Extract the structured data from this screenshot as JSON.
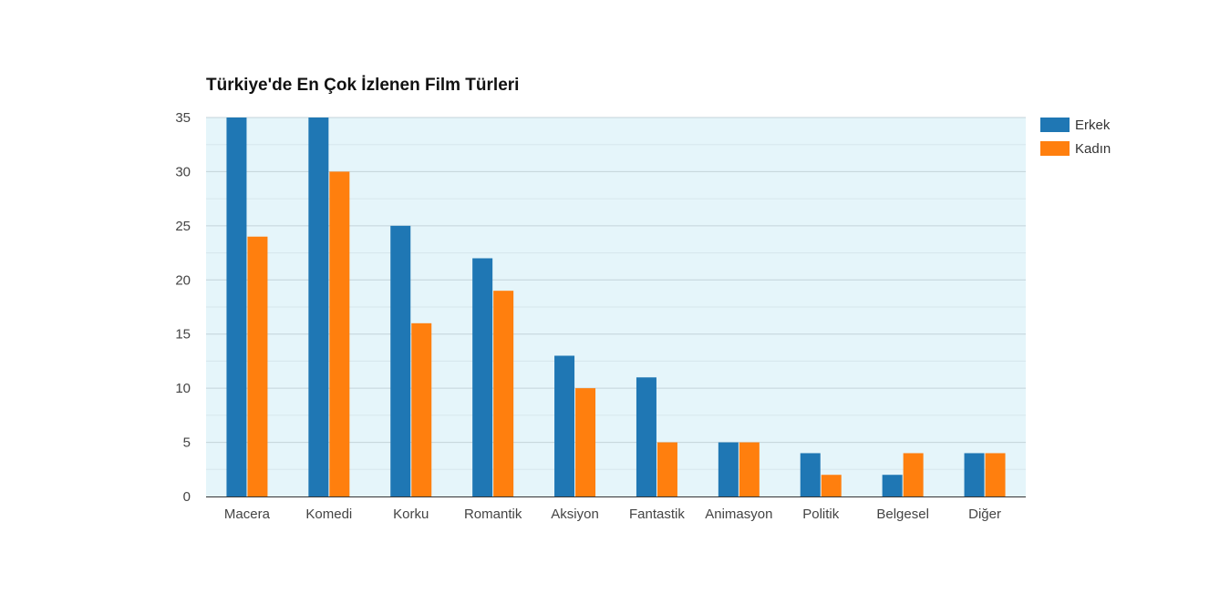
{
  "chart_data": {
    "type": "bar",
    "title": "Türkiye'de En Çok İzlenen Film Türleri",
    "xlabel": "",
    "ylabel": "",
    "categories": [
      "Macera",
      "Komedi",
      "Korku",
      "Romantik",
      "Aksiyon",
      "Fantastik",
      "Animasyon",
      "Politik",
      "Belgesel",
      "Diğer"
    ],
    "series": [
      {
        "name": "Erkek",
        "color": "#1f77b4",
        "values": [
          35,
          35,
          25,
          22,
          13,
          11,
          5,
          4,
          2,
          4
        ]
      },
      {
        "name": "Kadın",
        "color": "#ff7f0e",
        "values": [
          24,
          30,
          16,
          19,
          10,
          5,
          5,
          2,
          4,
          4
        ]
      }
    ],
    "ylim": [
      0,
      35
    ],
    "yticks": [
      0,
      5,
      10,
      15,
      20,
      25,
      30,
      35
    ],
    "grid": true,
    "legend_position": "right",
    "plot_background": "#e5f5fa"
  }
}
